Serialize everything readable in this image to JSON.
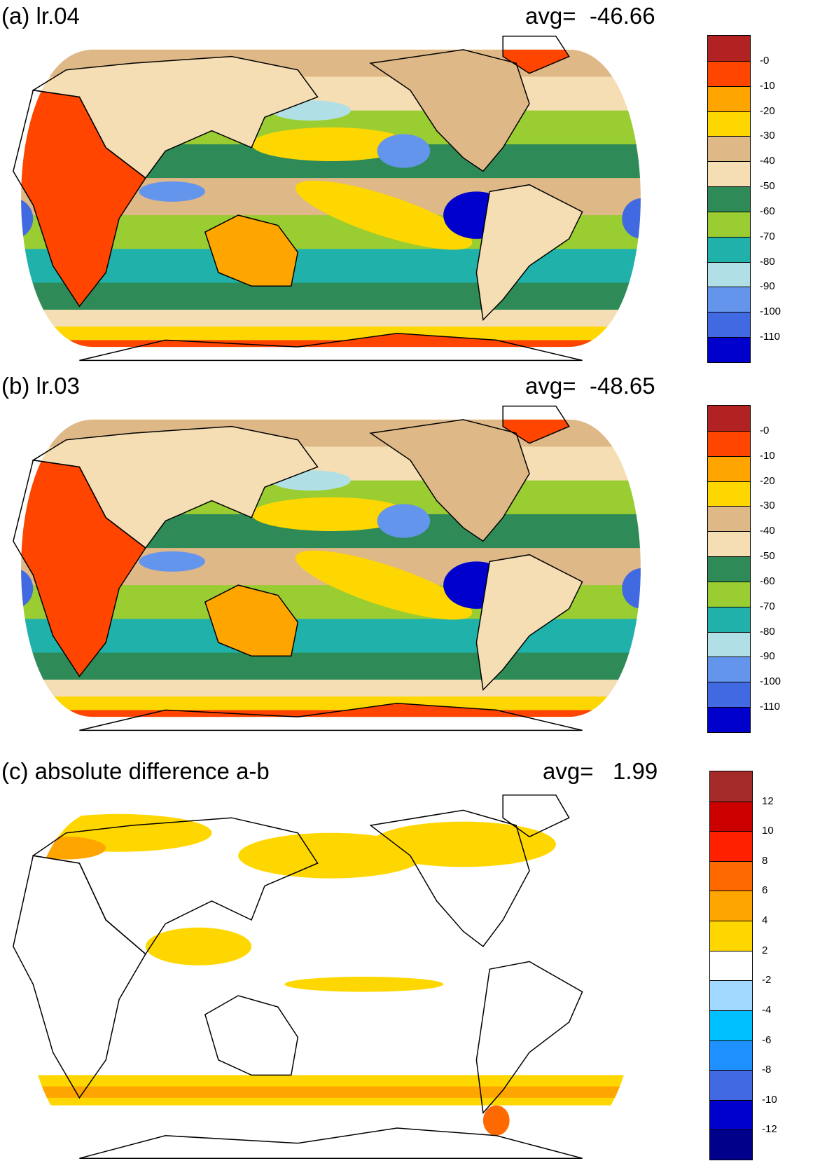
{
  "panels": [
    {
      "title": "(a) lr.04",
      "avg_label": "avg=",
      "avg_value": "-46.66",
      "colorbar": {
        "colors": [
          "#b22222",
          "#ff4500",
          "#ffa500",
          "#ffd700",
          "#deb887",
          "#f5deb3",
          "#2e8b57",
          "#9acd32",
          "#20b2aa",
          "#b0e0e6",
          "#6495ed",
          "#4169e1",
          "#0000cd"
        ],
        "labels": [
          "-0",
          "-10",
          "-20",
          "-30",
          "-40",
          "-50",
          "-60",
          "-70",
          "-80",
          "-90",
          "-100",
          "-110"
        ]
      }
    },
    {
      "title": "(b) lr.03",
      "avg_label": "avg=",
      "avg_value": "-48.65",
      "colorbar": {
        "colors": [
          "#b22222",
          "#ff4500",
          "#ffa500",
          "#ffd700",
          "#deb887",
          "#f5deb3",
          "#2e8b57",
          "#9acd32",
          "#20b2aa",
          "#b0e0e6",
          "#6495ed",
          "#4169e1",
          "#0000cd"
        ],
        "labels": [
          "-0",
          "-10",
          "-20",
          "-30",
          "-40",
          "-50",
          "-60",
          "-70",
          "-80",
          "-90",
          "-100",
          "-110"
        ]
      }
    },
    {
      "title": "(c) absolute difference a-b",
      "avg_label": "avg=",
      "avg_value": "1.99",
      "colorbar": {
        "colors": [
          "#a52a2a",
          "#cd0000",
          "#ff2000",
          "#ff6a00",
          "#ffa500",
          "#ffd700",
          "#ffffff",
          "#a0d8ff",
          "#00bfff",
          "#1e90ff",
          "#4169e1",
          "#0000cd",
          "#00008b"
        ],
        "labels": [
          "12",
          "10",
          "8",
          "6",
          "4",
          "2",
          "-2",
          "-4",
          "-6",
          "-8",
          "-10",
          "-12"
        ]
      }
    }
  ]
}
